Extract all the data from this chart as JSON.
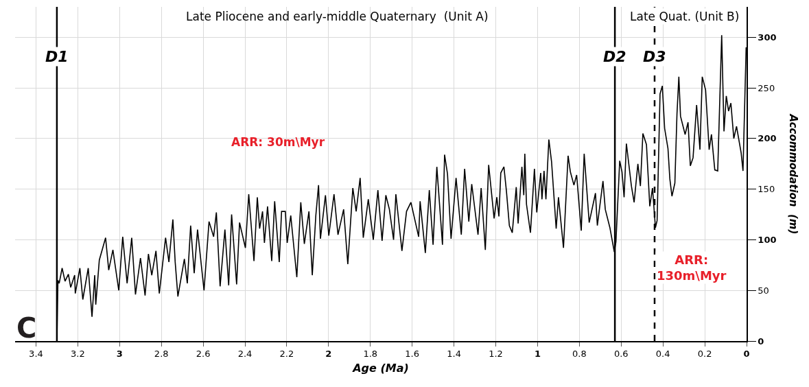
{
  "chart_data": {
    "type": "line",
    "xlabel": "Age (Ma)",
    "ylabel": "Accommodation  (m)",
    "annotations": [
      "Late Pliocene and early-middle Quaternary  (Unit A)",
      "Late Quat. (Unit B)",
      "ARR: 30m\\Myr",
      "ARR:\n130m\\Myr",
      "C"
    ],
    "series": [
      {
        "color": "#000000",
        "x": [
          3.3,
          3.295,
          3.289,
          3.275,
          3.261,
          3.245,
          3.234,
          3.215,
          3.212,
          3.19,
          3.176,
          3.15,
          3.132,
          3.119,
          3.114,
          3.097,
          3.067,
          3.052,
          3.032,
          3.004,
          2.985,
          2.964,
          2.942,
          2.924,
          2.9,
          2.878,
          2.862,
          2.846,
          2.826,
          2.81,
          2.78,
          2.764,
          2.745,
          2.734,
          2.721,
          2.69,
          2.676,
          2.66,
          2.643,
          2.627,
          2.596,
          2.572,
          2.55,
          2.537,
          2.519,
          2.496,
          2.478,
          2.464,
          2.44,
          2.426,
          2.398,
          2.382,
          2.357,
          2.341,
          2.33,
          2.316,
          2.307,
          2.292,
          2.272,
          2.258,
          2.236,
          2.225,
          2.207,
          2.198,
          2.181,
          2.152,
          2.133,
          2.116,
          2.094,
          2.078,
          2.061,
          2.048,
          2.039,
          2.015,
          1.999,
          1.974,
          1.955,
          1.928,
          1.908,
          1.884,
          1.868,
          1.849,
          1.834,
          1.81,
          1.786,
          1.764,
          1.744,
          1.726,
          1.709,
          1.689,
          1.678,
          1.649,
          1.627,
          1.606,
          1.569,
          1.562,
          1.537,
          1.518,
          1.5,
          1.482,
          1.455,
          1.445,
          1.431,
          1.414,
          1.39,
          1.365,
          1.349,
          1.329,
          1.315,
          1.285,
          1.27,
          1.25,
          1.234,
          1.208,
          1.195,
          1.185,
          1.176,
          1.161,
          1.149,
          1.135,
          1.121,
          1.102,
          1.093,
          1.075,
          1.066,
          1.061,
          1.053,
          1.034,
          1.015,
          1.004,
          0.985,
          0.979,
          0.969,
          0.96,
          0.946,
          0.933,
          0.911,
          0.9,
          0.876,
          0.854,
          0.843,
          0.826,
          0.813,
          0.791,
          0.777,
          0.753,
          0.723,
          0.714,
          0.687,
          0.676,
          0.654,
          0.633,
          0.625,
          0.607,
          0.596,
          0.586,
          0.575,
          0.551,
          0.538,
          0.52,
          0.508,
          0.496,
          0.479,
          0.463,
          0.45,
          0.436,
          0.428,
          0.414,
          0.403,
          0.392,
          0.376,
          0.367,
          0.357,
          0.343,
          0.333,
          0.324,
          0.316,
          0.294,
          0.28,
          0.269,
          0.256,
          0.239,
          0.223,
          0.212,
          0.196,
          0.179,
          0.168,
          0.152,
          0.138,
          0.119,
          0.108,
          0.097,
          0.086,
          0.075,
          0.061,
          0.048,
          0.026,
          0.017,
          0.002
        ],
        "values": [
          0,
          60,
          57,
          72,
          59,
          66,
          53,
          65,
          47,
          72,
          41,
          72,
          24,
          65,
          36,
          80,
          102,
          70,
          90,
          50,
          103,
          57,
          102,
          46,
          82,
          45,
          86,
          65,
          89,
          47,
          102,
          78,
          120,
          78,
          44,
          81,
          57,
          114,
          67,
          110,
          50,
          118,
          103,
          127,
          54,
          110,
          55,
          125,
          56,
          117,
          92,
          145,
          79,
          142,
          111,
          128,
          97,
          133,
          79,
          138,
          78,
          128,
          128,
          97,
          124,
          63,
          137,
          96,
          128,
          65,
          124,
          154,
          101,
          144,
          104,
          145,
          105,
          130,
          76,
          151,
          128,
          161,
          102,
          140,
          100,
          149,
          99,
          144,
          130,
          100,
          145,
          89,
          128,
          137,
          103,
          138,
          87,
          149,
          95,
          172,
          95,
          184,
          165,
          101,
          161,
          105,
          170,
          118,
          155,
          105,
          151,
          90,
          174,
          121,
          142,
          123,
          166,
          172,
          148,
          114,
          107,
          152,
          116,
          172,
          144,
          185,
          135,
          107,
          170,
          127,
          166,
          140,
          168,
          140,
          199,
          177,
          111,
          142,
          92,
          183,
          167,
          154,
          164,
          109,
          185,
          117,
          146,
          114,
          158,
          130,
          112,
          88,
          98,
          178,
          167,
          142,
          195,
          153,
          137,
          175,
          153,
          205,
          194,
          133,
          151,
          112,
          119,
          244,
          252,
          210,
          190,
          160,
          143,
          156,
          224,
          261,
          222,
          204,
          216,
          173,
          181,
          233,
          189,
          261,
          248,
          189,
          204,
          169,
          168,
          302,
          207,
          242,
          227,
          235,
          200,
          212,
          186,
          168,
          290
        ]
      }
    ],
    "xlim": [
      3.5,
      0
    ],
    "xticks": [
      3.4,
      3.2,
      3,
      2.8,
      2.6,
      2.4,
      2.2,
      2,
      1.8,
      1.6,
      1.4,
      1.2,
      1,
      0.8,
      0.6,
      0.4,
      0.2,
      0
    ],
    "ylim": [
      0,
      330
    ],
    "yticks": [
      0,
      50,
      100,
      150,
      200,
      250,
      300
    ],
    "ref_lines": [
      {
        "axis": "x",
        "value": 3.3,
        "label": "D1",
        "color": "#000000",
        "line_style": "solid"
      },
      {
        "axis": "x",
        "value": 0.63,
        "label": "D2",
        "color": "#000000",
        "line_style": "solid"
      },
      {
        "axis": "x",
        "value": 0.44,
        "label": "D3",
        "color": "#000000",
        "line_style": "dashed"
      }
    ],
    "grid": true,
    "marker": "none",
    "line_style": "solid"
  }
}
